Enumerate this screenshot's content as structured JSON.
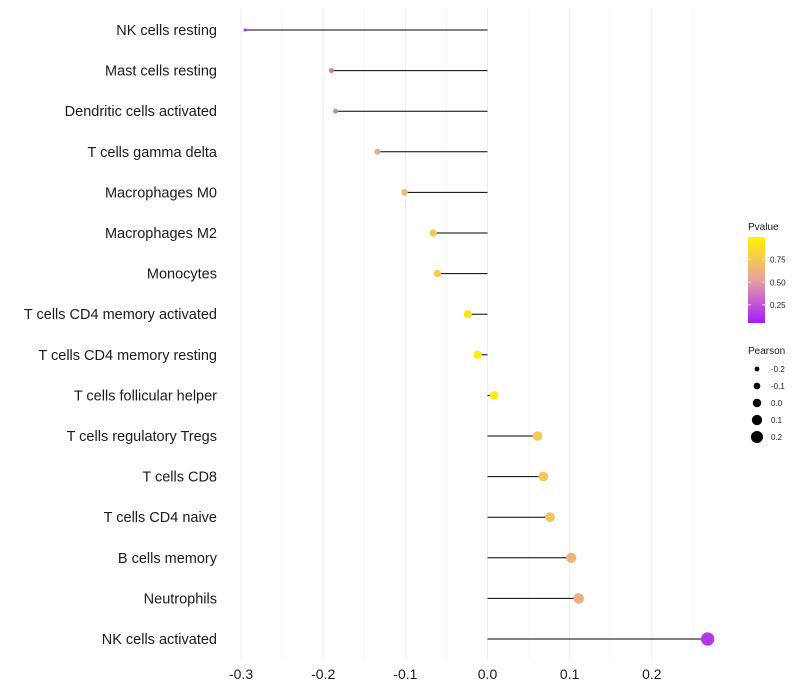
{
  "chart_data": {
    "type": "lollipop",
    "title": "",
    "xlabel": "",
    "ylabel": "",
    "xlim": [
      -0.3,
      0.27
    ],
    "x_ticks": [
      -0.3,
      -0.2,
      -0.1,
      0.0,
      0.1,
      0.2
    ],
    "x_tick_labels": [
      "-0.3",
      "-0.2",
      "-0.1",
      "0.0",
      "0.1",
      "0.2"
    ],
    "categories": [
      "NK cells resting",
      "Mast cells resting",
      "Dendritic cells activated",
      "T cells gamma delta",
      "Macrophages M0",
      "Macrophages M2",
      "Monocytes",
      "T cells CD4 memory activated",
      "T cells CD4 memory resting",
      "T cells follicular helper",
      "T cells regulatory  Tregs ",
      "T cells CD8",
      "T cells CD4 naive",
      "B cells memory",
      "Neutrophils",
      "NK cells activated"
    ],
    "pearson": [
      -0.295,
      -0.19,
      -0.185,
      -0.134,
      -0.101,
      -0.066,
      -0.061,
      -0.024,
      -0.012,
      0.008,
      0.061,
      0.068,
      0.076,
      0.102,
      0.111,
      0.268
    ],
    "pvalue": [
      0.08,
      0.38,
      0.4,
      0.56,
      0.68,
      0.77,
      0.78,
      0.91,
      0.96,
      0.97,
      0.77,
      0.75,
      0.72,
      0.64,
      0.61,
      0.15
    ],
    "legend": {
      "position": "right",
      "color": {
        "title": "Pvalue",
        "ticks": [
          0.25,
          0.5,
          0.75
        ],
        "tick_labels": [
          "0.25",
          "0.50",
          "0.75"
        ],
        "range": [
          0.05,
          1.0
        ],
        "low_color": "#a21cff",
        "mid_color": "#e8a0a0",
        "high_color": "#fff200"
      },
      "size": {
        "title": "Pearson",
        "values": [
          -0.2,
          -0.1,
          0.0,
          0.1,
          0.2
        ],
        "labels": [
          "-0.2",
          "-0.1",
          "0.0",
          "0.1",
          "0.2"
        ]
      }
    },
    "grid": true,
    "stem_color": "#000000"
  }
}
